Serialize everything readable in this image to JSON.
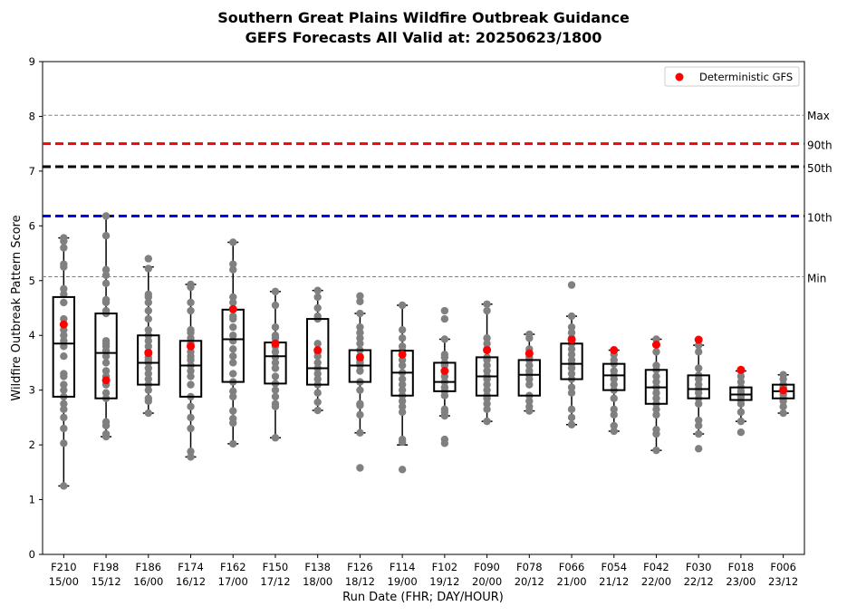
{
  "title_line1": "Southern Great Plains Wildfire Outbreak Guidance",
  "title_line2": "GEFS Forecasts All Valid at: 20250623/1800",
  "chart_data": {
    "type": "box",
    "xlabel": "Run Date (FHR; DAY/HOUR)",
    "ylabel": "Wildfire Outbreak Pattern Score",
    "ylim": [
      0,
      9
    ],
    "yticks": [
      0,
      1,
      2,
      3,
      4,
      5,
      6,
      7,
      8,
      9
    ],
    "legend": {
      "label": "Deterministic GFS",
      "position": "top-right"
    },
    "reference_lines": [
      {
        "label": "Max",
        "value": 8.02,
        "style": "dashed-thin",
        "color": "#808080"
      },
      {
        "label": "90th",
        "value": 7.5,
        "style": "dashed-thick",
        "color": "#ff0000"
      },
      {
        "label": "50th",
        "value": 7.08,
        "style": "dashed-thick",
        "color": "#000000"
      },
      {
        "label": "10th",
        "value": 6.18,
        "style": "dashed-thick",
        "color": "#0000ff"
      },
      {
        "label": "Min",
        "value": 5.07,
        "style": "dashed-thin",
        "color": "#808080"
      }
    ],
    "categories": [
      {
        "fhr": "F210",
        "date": "15/00",
        "q1": 2.88,
        "median": 3.85,
        "q3": 4.7,
        "whisker_low": 1.25,
        "whisker_high": 5.78,
        "deterministic": 4.2,
        "members": [
          1.25,
          2.03,
          2.3,
          2.5,
          2.65,
          2.75,
          2.88,
          3.0,
          3.1,
          3.25,
          3.3,
          3.62,
          3.8,
          3.9,
          4.0,
          4.1,
          4.3,
          4.6,
          4.75,
          4.85,
          5.25,
          5.3,
          5.6,
          5.72,
          5.78
        ]
      },
      {
        "fhr": "F198",
        "date": "15/12",
        "q1": 2.85,
        "median": 3.68,
        "q3": 4.4,
        "whisker_low": 2.15,
        "whisker_high": 6.18,
        "deterministic": 3.18,
        "members": [
          2.15,
          2.2,
          2.35,
          2.42,
          2.85,
          2.95,
          3.1,
          3.25,
          3.35,
          3.5,
          3.62,
          3.72,
          3.8,
          3.85,
          3.9,
          4.4,
          4.45,
          4.6,
          4.65,
          4.95,
          5.1,
          5.2,
          5.82,
          6.18
        ]
      },
      {
        "fhr": "F186",
        "date": "16/00",
        "q1": 3.1,
        "median": 3.5,
        "q3": 4.0,
        "whisker_low": 2.58,
        "whisker_high": 5.25,
        "deterministic": 3.68,
        "members": [
          2.58,
          2.8,
          2.85,
          3.0,
          3.1,
          3.2,
          3.3,
          3.4,
          3.5,
          3.55,
          3.6,
          3.7,
          3.8,
          3.9,
          4.0,
          4.1,
          4.3,
          4.45,
          4.6,
          4.7,
          4.75,
          5.22,
          5.4
        ]
      },
      {
        "fhr": "F174",
        "date": "16/12",
        "q1": 2.88,
        "median": 3.45,
        "q3": 3.9,
        "whisker_low": 1.78,
        "whisker_high": 4.93,
        "deterministic": 3.8,
        "members": [
          1.78,
          1.88,
          2.3,
          2.5,
          2.7,
          2.88,
          3.1,
          3.25,
          3.35,
          3.45,
          3.55,
          3.62,
          3.7,
          3.85,
          3.95,
          4.05,
          4.1,
          4.45,
          4.6,
          4.88,
          4.93
        ]
      },
      {
        "fhr": "F162",
        "date": "17/00",
        "q1": 3.15,
        "median": 3.93,
        "q3": 4.47,
        "whisker_low": 2.02,
        "whisker_high": 5.7,
        "deterministic": 4.48,
        "members": [
          2.02,
          2.4,
          2.48,
          2.62,
          2.88,
          2.98,
          3.15,
          3.3,
          3.5,
          3.62,
          3.75,
          3.9,
          4.0,
          4.15,
          4.3,
          4.35,
          4.47,
          4.6,
          4.7,
          5.2,
          5.3,
          5.7
        ]
      },
      {
        "fhr": "F150",
        "date": "17/12",
        "q1": 3.12,
        "median": 3.62,
        "q3": 3.87,
        "whisker_low": 2.13,
        "whisker_high": 4.8,
        "deterministic": 3.85,
        "members": [
          2.13,
          2.7,
          2.75,
          2.88,
          3.0,
          3.12,
          3.25,
          3.4,
          3.5,
          3.6,
          3.7,
          3.8,
          3.87,
          3.95,
          4.0,
          4.15,
          4.55,
          4.8
        ]
      },
      {
        "fhr": "F138",
        "date": "18/00",
        "q1": 3.1,
        "median": 3.4,
        "q3": 4.3,
        "whisker_low": 2.63,
        "whisker_high": 4.82,
        "deterministic": 3.73,
        "members": [
          2.63,
          2.78,
          2.95,
          3.1,
          3.2,
          3.3,
          3.4,
          3.5,
          3.62,
          3.7,
          3.85,
          4.3,
          4.35,
          4.5,
          4.7,
          4.82
        ]
      },
      {
        "fhr": "F126",
        "date": "18/12",
        "q1": 3.15,
        "median": 3.45,
        "q3": 3.73,
        "whisker_low": 2.22,
        "whisker_high": 4.4,
        "deterministic": 3.6,
        "members": [
          1.58,
          2.22,
          2.55,
          2.72,
          2.75,
          3.0,
          3.15,
          3.35,
          3.45,
          3.5,
          3.55,
          3.62,
          3.73,
          3.85,
          3.95,
          4.05,
          4.15,
          4.4,
          4.62,
          4.72
        ]
      },
      {
        "fhr": "F114",
        "date": "19/00",
        "q1": 2.9,
        "median": 3.32,
        "q3": 3.72,
        "whisker_low": 2.0,
        "whisker_high": 4.55,
        "deterministic": 3.65,
        "members": [
          1.55,
          2.05,
          2.1,
          2.6,
          2.7,
          2.8,
          2.9,
          3.0,
          3.1,
          3.2,
          3.32,
          3.45,
          3.55,
          3.65,
          3.72,
          3.8,
          3.95,
          4.1,
          4.55
        ]
      },
      {
        "fhr": "F102",
        "date": "19/12",
        "q1": 2.98,
        "median": 3.15,
        "q3": 3.5,
        "whisker_low": 2.53,
        "whisker_high": 3.93,
        "deterministic": 3.35,
        "members": [
          2.03,
          2.1,
          2.53,
          2.6,
          2.65,
          2.9,
          2.98,
          3.05,
          3.15,
          3.25,
          3.35,
          3.45,
          3.5,
          3.6,
          3.65,
          3.93,
          4.3,
          4.45
        ]
      },
      {
        "fhr": "F090",
        "date": "20/00",
        "q1": 2.9,
        "median": 3.25,
        "q3": 3.6,
        "whisker_low": 2.43,
        "whisker_high": 4.57,
        "deterministic": 3.73,
        "members": [
          2.43,
          2.65,
          2.75,
          2.85,
          2.9,
          3.0,
          3.1,
          3.2,
          3.25,
          3.35,
          3.45,
          3.55,
          3.6,
          3.75,
          3.85,
          3.95,
          4.45,
          4.57
        ]
      },
      {
        "fhr": "F078",
        "date": "20/12",
        "q1": 2.9,
        "median": 3.28,
        "q3": 3.55,
        "whisker_low": 2.62,
        "whisker_high": 4.02,
        "deterministic": 3.67,
        "members": [
          2.62,
          2.7,
          2.8,
          2.9,
          3.1,
          3.2,
          3.28,
          3.35,
          3.45,
          3.55,
          3.6,
          3.75,
          3.95,
          4.02
        ]
      },
      {
        "fhr": "F066",
        "date": "21/00",
        "q1": 3.2,
        "median": 3.48,
        "q3": 3.85,
        "whisker_low": 2.37,
        "whisker_high": 4.35,
        "deterministic": 3.92,
        "members": [
          2.37,
          2.5,
          2.65,
          2.95,
          3.05,
          3.2,
          3.3,
          3.4,
          3.48,
          3.55,
          3.65,
          3.75,
          3.85,
          3.95,
          4.05,
          4.15,
          4.35,
          4.92
        ]
      },
      {
        "fhr": "F054",
        "date": "21/12",
        "q1": 3.0,
        "median": 3.27,
        "q3": 3.48,
        "whisker_low": 2.25,
        "whisker_high": 3.73,
        "deterministic": 3.73,
        "members": [
          2.25,
          2.35,
          2.55,
          2.65,
          2.85,
          3.0,
          3.1,
          3.2,
          3.27,
          3.35,
          3.48,
          3.55,
          3.65
        ]
      },
      {
        "fhr": "F042",
        "date": "22/00",
        "q1": 2.75,
        "median": 3.05,
        "q3": 3.37,
        "whisker_low": 1.9,
        "whisker_high": 3.93,
        "deterministic": 3.83,
        "members": [
          1.9,
          2.2,
          2.28,
          2.55,
          2.65,
          2.75,
          2.85,
          2.95,
          3.05,
          3.15,
          3.25,
          3.37,
          3.45,
          3.7,
          3.93
        ]
      },
      {
        "fhr": "F030",
        "date": "22/12",
        "q1": 2.85,
        "median": 3.02,
        "q3": 3.27,
        "whisker_low": 2.2,
        "whisker_high": 3.82,
        "deterministic": 3.92,
        "members": [
          1.93,
          2.2,
          2.35,
          2.45,
          2.75,
          2.85,
          2.95,
          3.02,
          3.1,
          3.2,
          3.27,
          3.4,
          3.7,
          3.82
        ]
      },
      {
        "fhr": "F018",
        "date": "23/00",
        "q1": 2.82,
        "median": 2.92,
        "q3": 3.05,
        "whisker_low": 2.43,
        "whisker_high": 3.35,
        "deterministic": 3.37,
        "members": [
          2.23,
          2.43,
          2.6,
          2.75,
          2.82,
          2.88,
          2.92,
          2.98,
          3.05,
          3.15,
          3.25,
          3.35
        ]
      },
      {
        "fhr": "F006",
        "date": "23/12",
        "q1": 2.85,
        "median": 2.98,
        "q3": 3.1,
        "whisker_low": 2.58,
        "whisker_high": 3.28,
        "deterministic": 3.0,
        "members": [
          2.58,
          2.7,
          2.8,
          2.85,
          2.92,
          2.98,
          3.05,
          3.1,
          3.2,
          3.28
        ]
      }
    ]
  },
  "colors": {
    "member": "#808080",
    "deterministic": "#ff0000",
    "box": "#000000"
  }
}
